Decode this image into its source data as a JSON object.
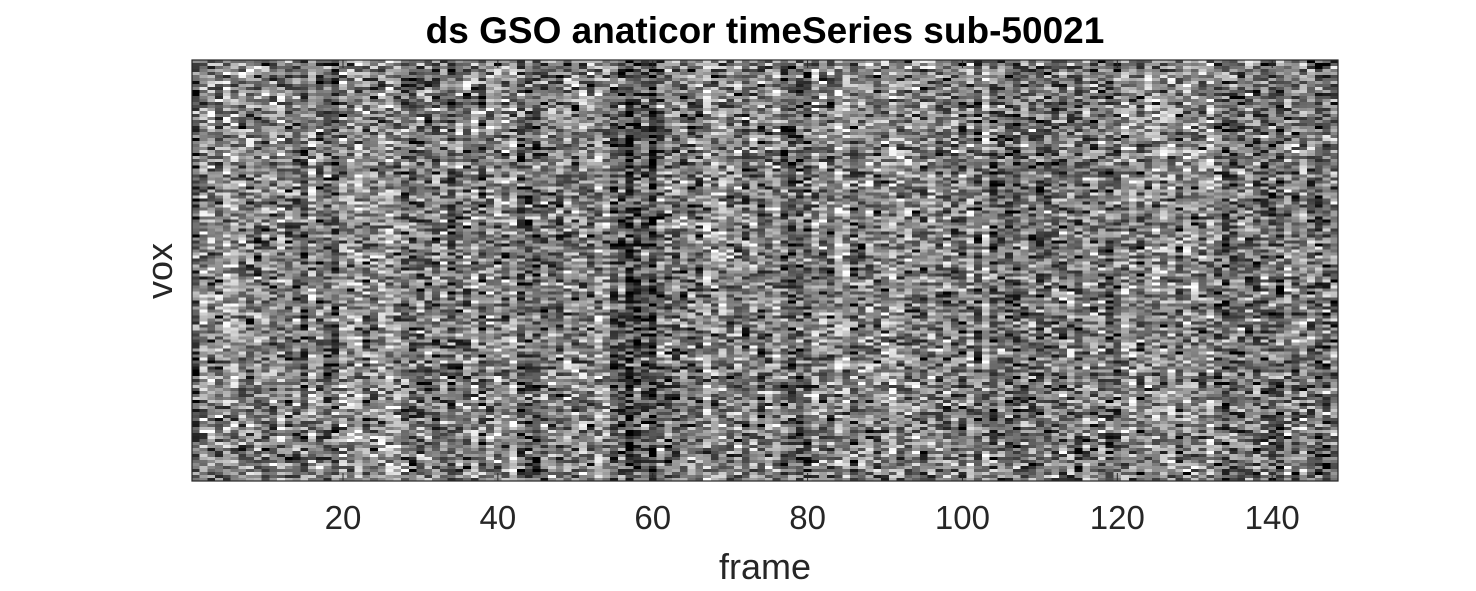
{
  "chart_data": {
    "type": "heatmap",
    "title": "ds GSO anaticor timeSeries sub-50021",
    "xlabel": "frame",
    "ylabel": "vox",
    "xlim": [
      0.5,
      148.5
    ],
    "x_ticks": [
      20,
      40,
      60,
      80,
      100,
      120,
      140
    ],
    "y_ticks": [],
    "colormap": "gray",
    "n_frames": 148,
    "grid": false,
    "legend": "none",
    "colors": {
      "axis": "#262626",
      "background": "#ffffff"
    }
  }
}
